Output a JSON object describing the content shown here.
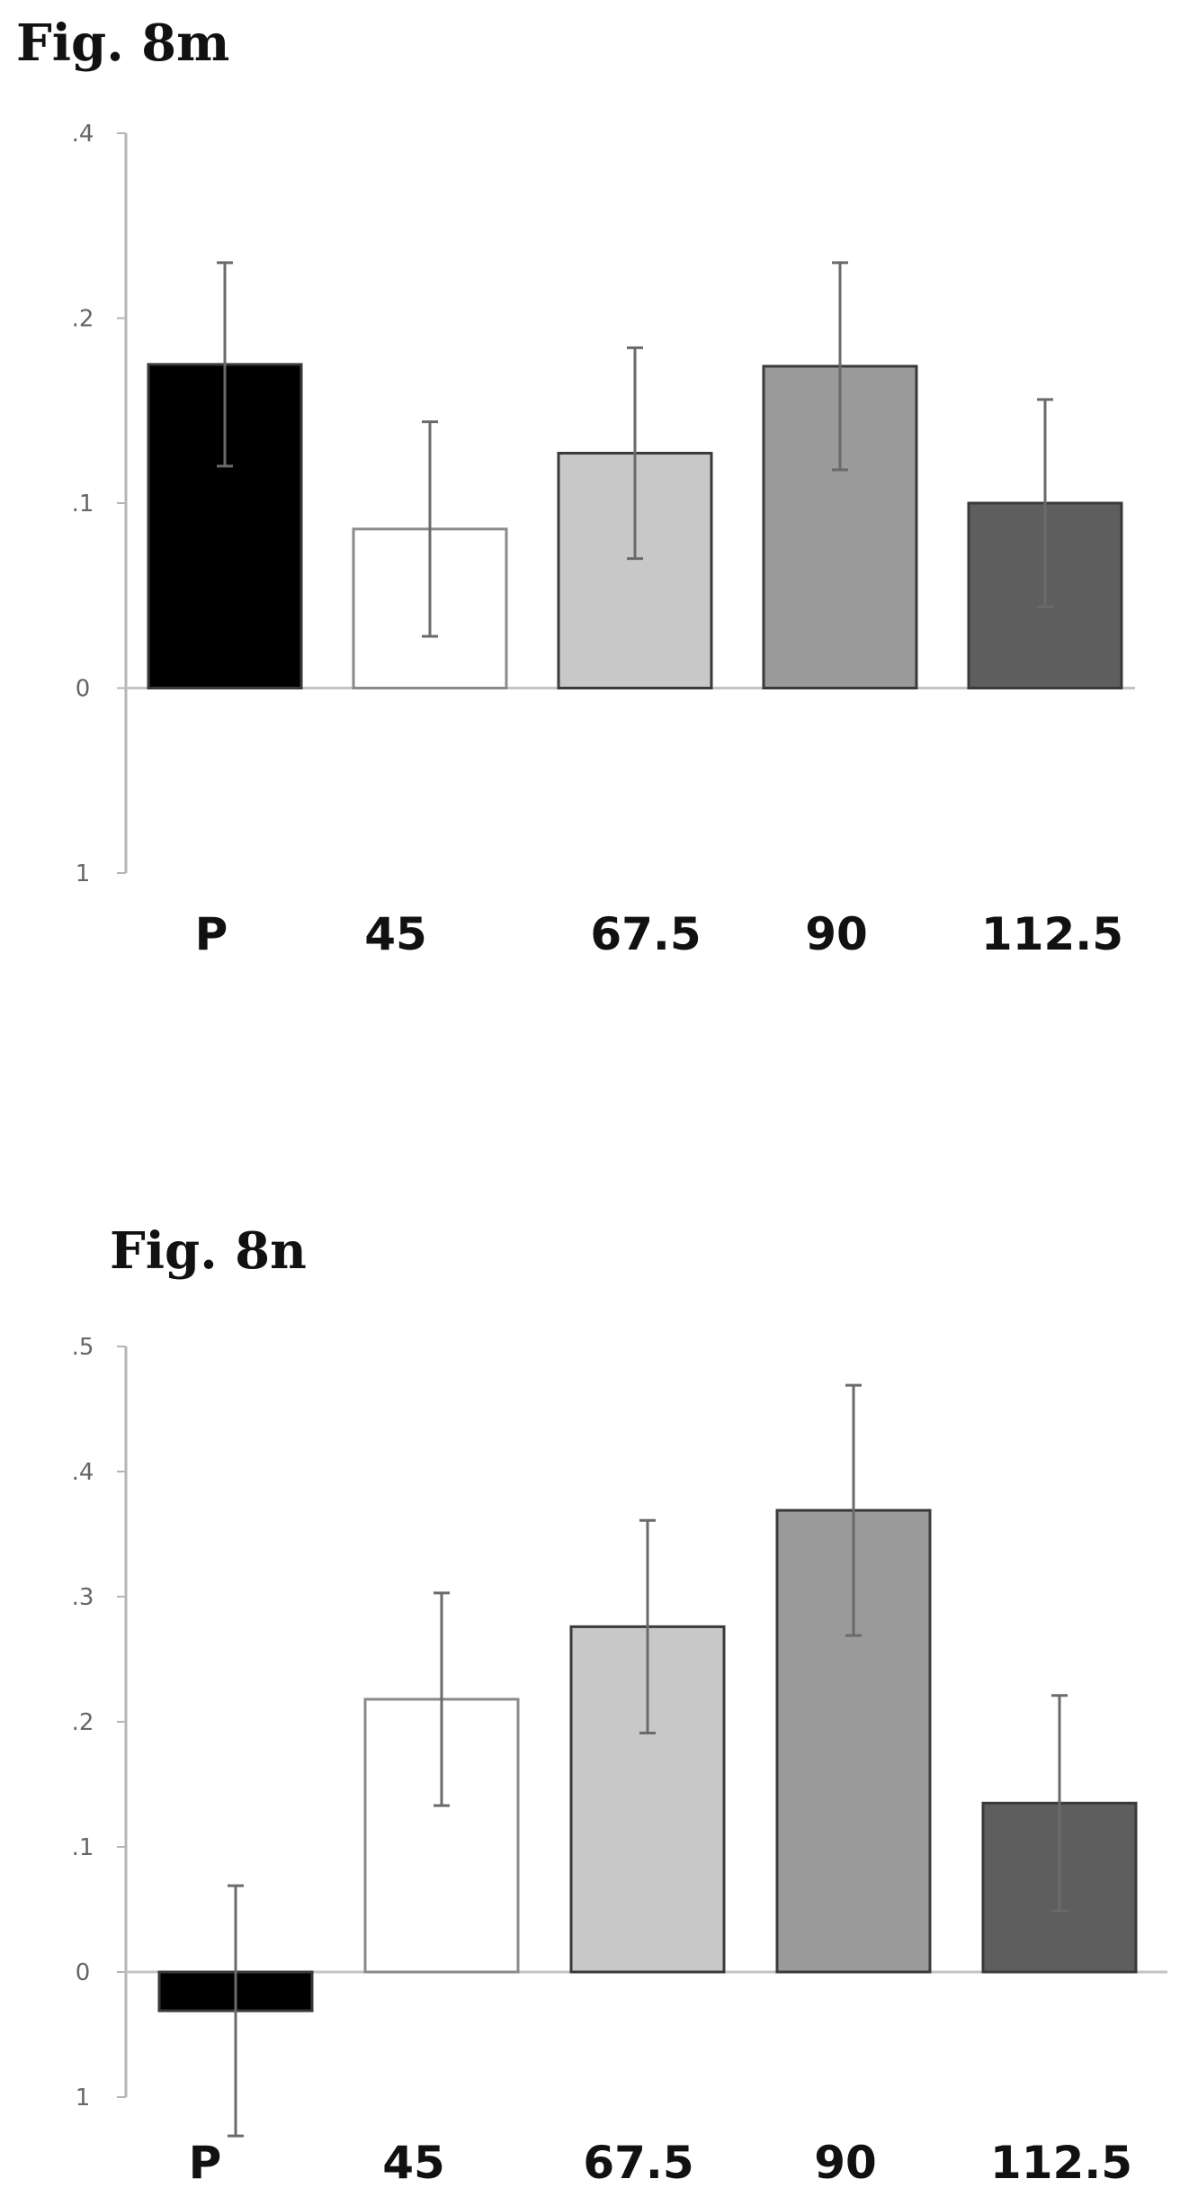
{
  "chart_data": [
    {
      "type": "bar",
      "title": "Fig. 8m",
      "categories": [
        "P",
        "45",
        "67.5",
        "90",
        "112.5"
      ],
      "values": [
        1.75,
        0.86,
        1.27,
        1.74,
        1.0
      ],
      "error": [
        0.55,
        0.58,
        0.57,
        0.56,
        0.56
      ],
      "yticks": [
        ".4",
        ".2",
        ".1",
        "0",
        "1"
      ],
      "ylim": [
        -1,
        3
      ],
      "bar_colors": [
        "#000000",
        "#ffffff",
        "#c8c8c8",
        "#9a9a9a",
        "#5e5e5e"
      ],
      "xlabel": "",
      "ylabel": ""
    },
    {
      "type": "bar",
      "title": "Fig. 8n",
      "categories": [
        "P",
        "45",
        "67.5",
        "90",
        "112.5"
      ],
      "values": [
        -0.31,
        2.18,
        2.76,
        3.69,
        1.35
      ],
      "error": [
        1.0,
        0.85,
        0.85,
        1.0,
        0.86
      ],
      "yticks": [
        ".5",
        ".4",
        ".3",
        ".2",
        ".1",
        "0",
        "1"
      ],
      "ylim": [
        -1,
        5
      ],
      "bar_colors": [
        "#000000",
        "#ffffff",
        "#c8c8c8",
        "#9a9a9a",
        "#5e5e5e"
      ],
      "xlabel": "",
      "ylabel": ""
    }
  ]
}
